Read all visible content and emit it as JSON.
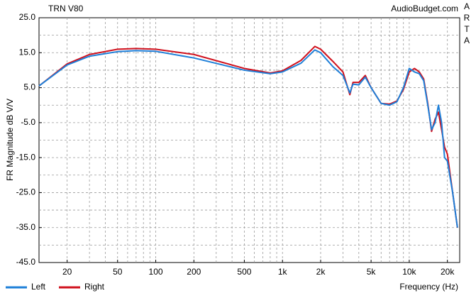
{
  "chart_data": {
    "type": "line",
    "title": "TRN V80",
    "source": "AudioBudget.com",
    "side_label": "ARTA",
    "y_label": "FR Magnitude dB V/V",
    "x_label": "Frequency (Hz)",
    "log_x": true,
    "grid": true,
    "legend": "bottom-left",
    "xlim": [
      12,
      25000
    ],
    "ylim": [
      -45,
      25
    ],
    "xticks": [
      20,
      50,
      100,
      200,
      500,
      {
        "value": 1000,
        "label": "1k"
      },
      {
        "value": 2000,
        "label": "2k"
      },
      {
        "value": 5000,
        "label": "5k"
      },
      {
        "value": 10000,
        "label": "10k"
      },
      {
        "value": 20000,
        "label": "20k"
      }
    ],
    "yticks": [
      {
        "value": 25,
        "label": "25.0"
      },
      {
        "value": 15,
        "label": "15.0"
      },
      {
        "value": 5,
        "label": "5.0"
      },
      {
        "value": -5,
        "label": "-5.0"
      },
      {
        "value": -15,
        "label": "-15.0"
      },
      {
        "value": -25,
        "label": "-25.0"
      },
      {
        "value": -35,
        "label": "-35.0"
      },
      {
        "value": -45,
        "label": "-45.0"
      }
    ],
    "xgrid": [
      20,
      30,
      40,
      50,
      60,
      70,
      80,
      90,
      100,
      200,
      300,
      400,
      500,
      600,
      700,
      800,
      900,
      1000,
      2000,
      3000,
      4000,
      5000,
      6000,
      7000,
      8000,
      9000,
      10000,
      20000
    ],
    "ygrid": [
      20,
      15,
      10,
      5,
      0,
      -5,
      -10,
      -15,
      -20,
      -25,
      -30,
      -35,
      -40
    ],
    "x": [
      12,
      20,
      30,
      50,
      70,
      100,
      200,
      500,
      800,
      1000,
      1400,
      1800,
      2000,
      2500,
      3000,
      3400,
      3600,
      4000,
      4500,
      5000,
      6000,
      7000,
      8000,
      9000,
      10000,
      11000,
      12000,
      13000,
      14000,
      15000,
      16000,
      17000,
      18000,
      19000,
      20000,
      22000,
      24000
    ],
    "series": [
      {
        "name": "Left",
        "color": "#1e7fd8",
        "values": [
          5.5,
          11.5,
          14,
          15.3,
          15.6,
          15.4,
          13.5,
          10,
          9,
          9.5,
          12,
          15.8,
          15,
          11,
          8.5,
          3.5,
          6,
          5.8,
          8,
          5,
          0.5,
          0,
          1,
          5,
          10.5,
          9.5,
          9,
          7,
          0,
          -7,
          -5,
          0,
          -5,
          -15,
          -16,
          -25,
          -35
        ]
      },
      {
        "name": "Right",
        "color": "#d0101c",
        "values": [
          5.5,
          11.8,
          14.5,
          16,
          16.2,
          16,
          14.5,
          10.5,
          9.2,
          9.8,
          12.8,
          16.8,
          16,
          12.5,
          9.5,
          3,
          6.5,
          6.5,
          8.5,
          5,
          0.5,
          0.3,
          1.2,
          4.5,
          9.5,
          10.5,
          9.5,
          7.5,
          0.5,
          -7.5,
          -4,
          -2,
          -7,
          -12,
          -14,
          -25,
          -35
        ]
      }
    ]
  }
}
